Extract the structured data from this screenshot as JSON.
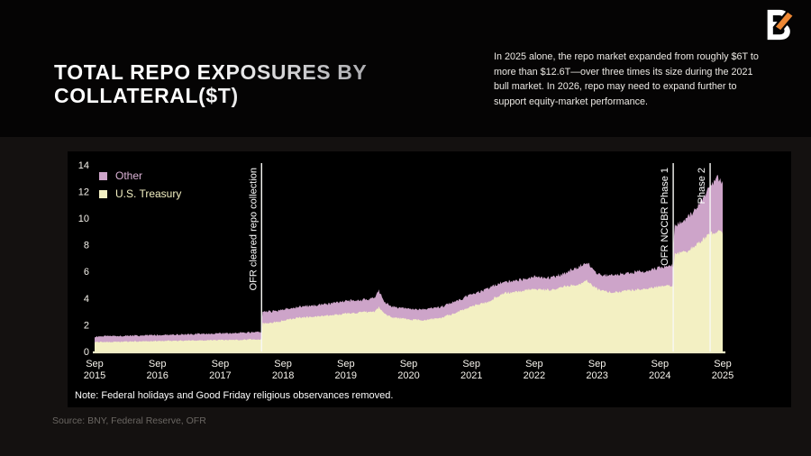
{
  "page": {
    "title_line1": "TOTAL REPO EXPOSURES BY",
    "title_line2": "COLLATERAL($T)",
    "intro": "In 2025 alone, the repo market expanded from roughly $6T to more than $12.6T—over three times its size during the 2021 bull market. In 2026, repo may need to expand further to support equity-market performance.",
    "note": "Note: Federal holidays and Good Friday religious observances removed.",
    "source": "Source: BNY, Federal Reserve, OFR",
    "logo_name": "bny-logo"
  },
  "colors": {
    "background": "#141110",
    "top_band": "#050404",
    "panel": "#000000",
    "other_area": "#cda4c9",
    "treasury_area": "#f3f0c3",
    "other_label": "#dcb3d6",
    "treasury_label": "#f3f0c2",
    "axis_text": "#f6f3ec",
    "axis_line": "#eeebc6",
    "annotation_line": "#f8f8f5",
    "logo_orange": "#ED8733",
    "logo_white": "#ffffff"
  },
  "chart_data": {
    "type": "area",
    "stacked": true,
    "title": "Total repo exposures by collateral ($T)",
    "x_unit_note": "t = months since Sep 2015; values in $ trillions",
    "ylim": [
      0,
      14
    ],
    "y_ticks": [
      0,
      2,
      4,
      6,
      8,
      10,
      12,
      14
    ],
    "x_ticks": [
      {
        "t": 0,
        "month": "Sep",
        "year": "2015"
      },
      {
        "t": 12,
        "month": "Sep",
        "year": "2016"
      },
      {
        "t": 24,
        "month": "Sep",
        "year": "2017"
      },
      {
        "t": 36,
        "month": "Sep",
        "year": "2018"
      },
      {
        "t": 48,
        "month": "Sep",
        "year": "2019"
      },
      {
        "t": 60,
        "month": "Sep",
        "year": "2020"
      },
      {
        "t": 72,
        "month": "Sep",
        "year": "2021"
      },
      {
        "t": 84,
        "month": "Sep",
        "year": "2022"
      },
      {
        "t": 96,
        "month": "Sep",
        "year": "2023"
      },
      {
        "t": 108,
        "month": "Sep",
        "year": "2024"
      },
      {
        "t": 120,
        "month": "Sep",
        "year": "2025"
      }
    ],
    "legend": [
      {
        "label": "Other",
        "key": "other"
      },
      {
        "label": "U.S. Treasury",
        "key": "treasury"
      }
    ],
    "anchors_format": "[t, treasury, other]",
    "anchors": [
      [
        0,
        0.7,
        0.42
      ],
      [
        3,
        0.72,
        0.43
      ],
      [
        6,
        0.74,
        0.44
      ],
      [
        9,
        0.75,
        0.44
      ],
      [
        12,
        0.78,
        0.45
      ],
      [
        15,
        0.8,
        0.46
      ],
      [
        18,
        0.82,
        0.47
      ],
      [
        21,
        0.84,
        0.48
      ],
      [
        24,
        0.86,
        0.5
      ],
      [
        27,
        0.88,
        0.51
      ],
      [
        30,
        0.9,
        0.53
      ],
      [
        31.8,
        0.91,
        0.54
      ],
      [
        32.1,
        2.1,
        0.85
      ],
      [
        34,
        2.18,
        0.82
      ],
      [
        36,
        2.3,
        0.85
      ],
      [
        39,
        2.55,
        0.8
      ],
      [
        42,
        2.6,
        0.85
      ],
      [
        45,
        2.7,
        0.9
      ],
      [
        48,
        2.85,
        0.95
      ],
      [
        51,
        2.92,
        0.93
      ],
      [
        53.5,
        3.0,
        1.0
      ],
      [
        54.3,
        3.3,
        1.25
      ],
      [
        55.5,
        2.8,
        0.9
      ],
      [
        57,
        2.55,
        0.8
      ],
      [
        60,
        2.4,
        0.8
      ],
      [
        63,
        2.35,
        0.8
      ],
      [
        66,
        2.5,
        0.82
      ],
      [
        69,
        2.9,
        0.85
      ],
      [
        72,
        3.4,
        0.9
      ],
      [
        75,
        3.7,
        1.0
      ],
      [
        78,
        4.35,
        0.85
      ],
      [
        81,
        4.5,
        0.85
      ],
      [
        84,
        4.7,
        0.88
      ],
      [
        87,
        4.6,
        0.92
      ],
      [
        90,
        4.9,
        1.0
      ],
      [
        93,
        5.1,
        1.35
      ],
      [
        94,
        5.3,
        1.4
      ],
      [
        96,
        4.7,
        1.2
      ],
      [
        97.5,
        4.55,
        1.15
      ],
      [
        99,
        4.4,
        1.35
      ],
      [
        102,
        4.6,
        1.3
      ],
      [
        105,
        4.7,
        1.32
      ],
      [
        108,
        4.9,
        1.4
      ],
      [
        110.4,
        4.95,
        1.5
      ],
      [
        110.8,
        7.3,
        2.2
      ],
      [
        112,
        7.4,
        2.3
      ],
      [
        113,
        7.5,
        2.4
      ],
      [
        115,
        8.0,
        2.8
      ],
      [
        117,
        8.6,
        3.4
      ],
      [
        117.6,
        8.8,
        3.6
      ],
      [
        119,
        9.0,
        4.0
      ],
      [
        120,
        8.95,
        3.7
      ]
    ],
    "annotations": [
      {
        "label": "OFR cleared repo collection",
        "t": 31.9
      },
      {
        "label": "OFR NCCBR Phase 1",
        "t": 110.55
      },
      {
        "label": "Phase 2",
        "t": 117.6
      }
    ]
  }
}
